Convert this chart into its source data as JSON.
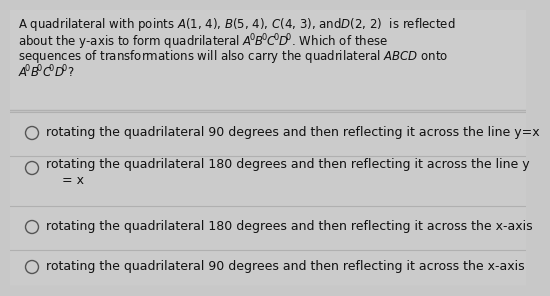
{
  "bg_color": "#c8c8c8",
  "question_bg": "#d0d0d0",
  "option_bg": "#d0d0d0",
  "divider_color": "#b0b0b0",
  "text_color": "#111111",
  "circle_color": "#555555",
  "font_size_question": 8.5,
  "font_size_options": 9.0,
  "question_lines": [
    "A quadrilateral with points $\\mathit{A}$(1, 4), $\\mathit{B}$(5, 4), $\\mathit{C}$(4, 3), and$\\mathit{D}$(2, 2)  is reflected",
    "about the y-axis to form quadrilateral $\\mathit{A\\!'\\!B\\!'\\!C\\!'\\!D\\!'}$. Which of these",
    "sequences of transformations will also carry the quadrilateral $\\mathit{ABCD}$ onto",
    "$\\mathit{A\\!'\\!B\\!'\\!C\\!'\\!D\\!'}$?"
  ],
  "option1_line1": "rotating the quadrilateral 90 degrees and then reflecting it across the line y=x",
  "option2_line1": "rotating the quadrilateral 180 degrees and then reflecting it across the line y",
  "option2_line2": "= x",
  "option3_line1": "rotating the quadrilateral 180 degrees and then reflecting it across the x-axis",
  "option4_line1": "rotating the quadrilateral 90 degrees and then reflecting it across the x-axis"
}
